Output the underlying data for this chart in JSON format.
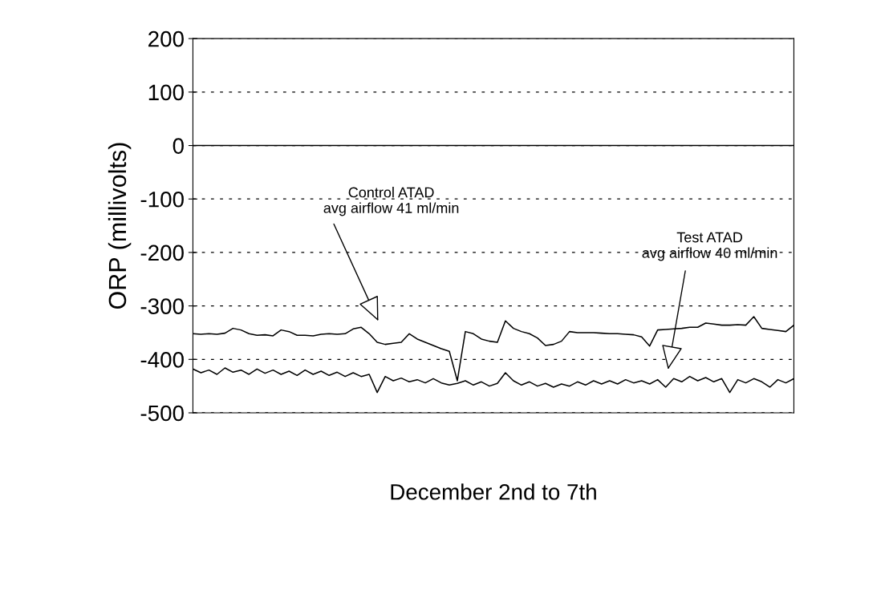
{
  "chart_data": {
    "type": "line",
    "xlabel": "December 2nd to 7th",
    "ylabel": "ORP (millivolts)",
    "categories": [
      null,
      null,
      null,
      null,
      null,
      null,
      null,
      null,
      null,
      null,
      null,
      null,
      null,
      null,
      null,
      null,
      null,
      null,
      null,
      null,
      null,
      null,
      null,
      null,
      null,
      null,
      null,
      null,
      null,
      null,
      null,
      null,
      null,
      null,
      null,
      null,
      null,
      null,
      null,
      null,
      null,
      null,
      null,
      null,
      null,
      null,
      null,
      null,
      null,
      null,
      null,
      null,
      null,
      null,
      null,
      null,
      null,
      null,
      null,
      null,
      null,
      null,
      null,
      null,
      null,
      null,
      null,
      null,
      null,
      null,
      null,
      null,
      null,
      null,
      null,
      null
    ],
    "series": [
      {
        "color": "#000000",
        "values": [
          -352,
          -353,
          -352,
          -353,
          -351,
          -342,
          -345,
          -352,
          -355,
          -354,
          -356,
          -345,
          -348,
          -355,
          -355,
          -356,
          -353,
          -352,
          -353,
          -352,
          -343,
          -340,
          -352,
          -368,
          -372,
          -370,
          -368,
          -352,
          -362,
          -368,
          -374,
          -380,
          -385,
          -440,
          -348,
          -352,
          -362,
          -366,
          -368,
          -328,
          -342,
          -348,
          -352,
          -360,
          -374,
          -372,
          -366,
          -348,
          -350,
          -350,
          -350,
          -351,
          -352,
          -352,
          -353,
          -354,
          -358,
          -375,
          -345,
          -344,
          -343,
          -342,
          -340,
          -340,
          -332,
          -334,
          -336,
          -336,
          -335,
          -336,
          -320,
          -342,
          -344,
          -346,
          -348,
          -336
        ]
      },
      {
        "color": "#000000",
        "values": [
          -418,
          -425,
          -420,
          -428,
          -416,
          -424,
          -420,
          -428,
          -418,
          -426,
          -420,
          -428,
          -422,
          -430,
          -420,
          -428,
          -422,
          -430,
          -424,
          -432,
          -425,
          -432,
          -428,
          -462,
          -432,
          -440,
          -435,
          -442,
          -438,
          -444,
          -436,
          -444,
          -448,
          -445,
          -440,
          -448,
          -442,
          -450,
          -445,
          -425,
          -440,
          -448,
          -442,
          -450,
          -445,
          -452,
          -446,
          -450,
          -442,
          -448,
          -440,
          -446,
          -440,
          -446,
          -438,
          -444,
          -440,
          -446,
          -438,
          -452,
          -436,
          -442,
          -432,
          -440,
          -434,
          -442,
          -436,
          -462,
          -438,
          -444,
          -436,
          -442,
          -452,
          -438,
          -444,
          -436
        ]
      }
    ],
    "ylim": [
      -500,
      200
    ],
    "yticks": [
      -500,
      -400,
      -300,
      -200,
      -100,
      0,
      100,
      200
    ],
    "grid": "y",
    "ref_lines": [
      {
        "axis": "y",
        "value": 0,
        "color": "#000000",
        "line_style": "solid"
      }
    ],
    "annotations": [
      "Control ATAD\navg airflow 41 ml/min",
      "Test ATAD\navg airflow 40 ml/min"
    ]
  }
}
